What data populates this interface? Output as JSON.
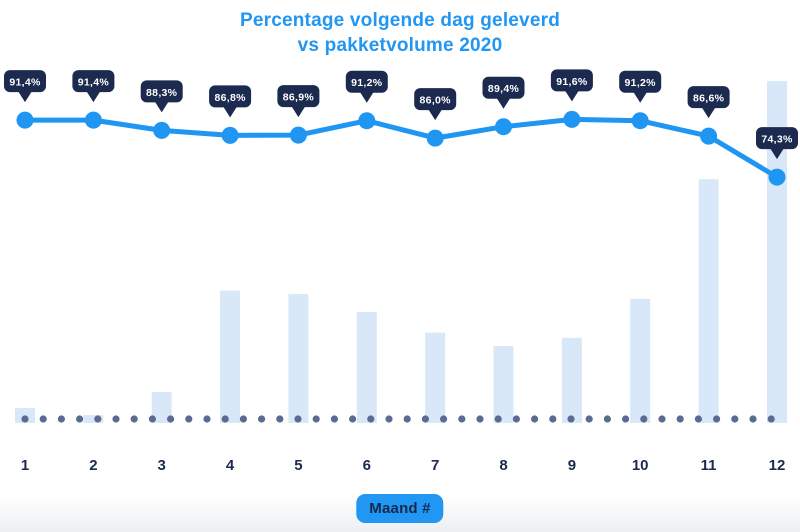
{
  "title": {
    "line1": "Percentage volgende dag geleverd",
    "line2": "vs pakketvolume 2020"
  },
  "x_axis": {
    "label_badge": "Maand #",
    "tick_labels": [
      "1",
      "2",
      "3",
      "4",
      "5",
      "6",
      "7",
      "8",
      "9",
      "10",
      "11",
      "12"
    ]
  },
  "colors": {
    "title_blue": "#2196f3",
    "line_blue": "#1e96f2",
    "bar_light_blue": "#d9e8f8",
    "badge_navy": "#1b2a4e",
    "axis_navy": "#1b2a4e",
    "dot_slate": "#5a6a92",
    "badge_text": "#ffffff",
    "x_label_badge_bg": "#2196f3",
    "x_label_badge_text": "#16294d"
  },
  "chart_data": {
    "type": "combo",
    "title": "Percentage volgende dag geleverd vs pakketvolume 2020",
    "xlabel": "Maand #",
    "categories": [
      "1",
      "2",
      "3",
      "4",
      "5",
      "6",
      "7",
      "8",
      "9",
      "10",
      "11",
      "12"
    ],
    "series": [
      {
        "name": "Percentage volgende dag geleverd",
        "type": "line",
        "unit": "%",
        "values": [
          91.4,
          91.4,
          88.3,
          86.8,
          86.9,
          91.2,
          86.0,
          89.4,
          91.6,
          91.2,
          86.6,
          74.3
        ],
        "labels": [
          "91,4%",
          "91,4%",
          "88,3%",
          "86,8%",
          "86,9%",
          "91,2%",
          "86,0%",
          "89,4%",
          "91,6%",
          "91,2%",
          "86,6%",
          "74,3%"
        ]
      },
      {
        "name": "Pakketvolume",
        "type": "bar",
        "unit": "relative (no value axis shown; max month = 100)",
        "values": [
          4.4,
          2.3,
          9.1,
          38.7,
          37.7,
          32.5,
          26.4,
          22.5,
          24.9,
          36.3,
          71.3,
          100
        ]
      }
    ],
    "baseline": {
      "style": "dotted"
    },
    "legend": "none",
    "grid": "off"
  }
}
